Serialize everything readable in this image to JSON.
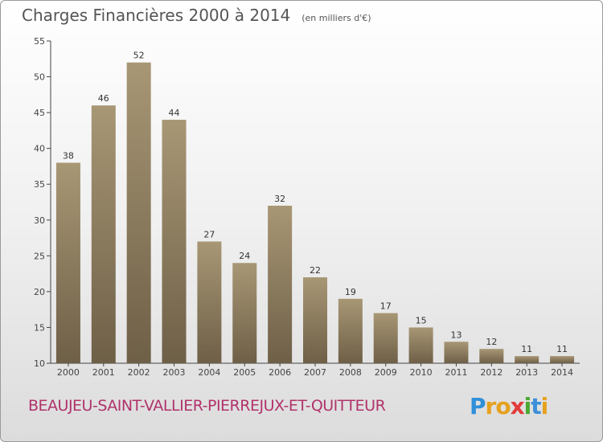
{
  "header": {
    "title": "Charges Financières 2000 à 2014",
    "unit": "(en milliers d'€)"
  },
  "footer": {
    "commune": "BEAUJEU-SAINT-VALLIER-PIERREJUX-ET-QUITTEUR",
    "logo_letters": [
      "P",
      "r",
      "o",
      "x",
      "i",
      "t",
      "i"
    ],
    "logo_colors": [
      "#2f8fd8",
      "#e6a11e",
      "#e6a11e",
      "#e23b3b",
      "#4aa832",
      "#3d8fd8",
      "#e6a11e"
    ]
  },
  "chart_data": {
    "type": "bar",
    "categories": [
      "2000",
      "2001",
      "2002",
      "2003",
      "2004",
      "2005",
      "2006",
      "2007",
      "2008",
      "2009",
      "2010",
      "2011",
      "2012",
      "2013",
      "2014"
    ],
    "values": [
      38,
      46,
      52,
      44,
      27,
      24,
      32,
      22,
      19,
      17,
      15,
      13,
      12,
      11,
      11
    ],
    "title": "Charges Financières 2000 à 2014",
    "ylim": [
      10,
      55
    ],
    "yticks": [
      10,
      15,
      20,
      25,
      30,
      35,
      40,
      45,
      50,
      55
    ],
    "grid": false,
    "colors": {
      "bar": "#8f7f62",
      "bar_light": "#a89775",
      "bar_dark": "#6e5f47",
      "axis": "#444444"
    }
  }
}
